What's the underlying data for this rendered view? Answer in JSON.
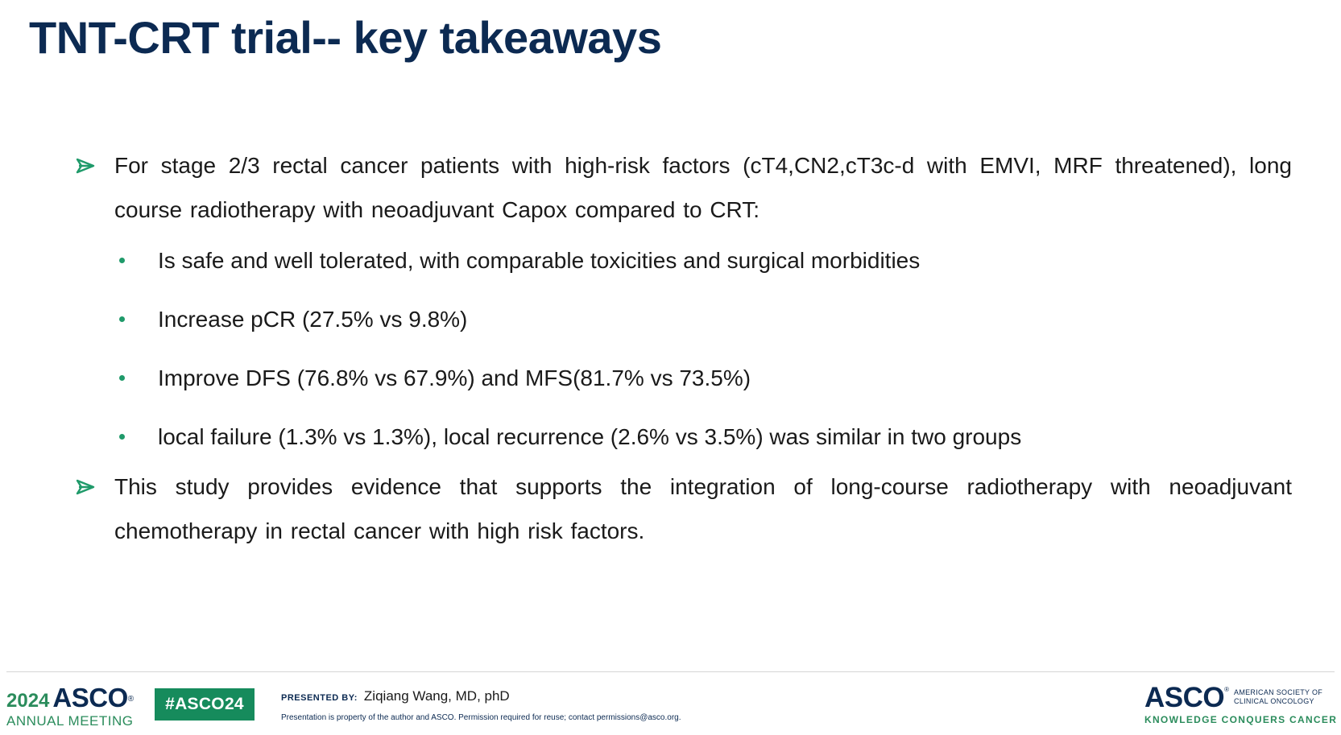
{
  "title": "TNT-CRT trial-- key takeaways",
  "bullets": [
    {
      "text": "For stage 2/3 rectal cancer patients with high-risk factors (cT4,CN2,cT3c-d with EMVI, MRF threatened), long course radiotherapy with neoadjuvant Capox compared to CRT:",
      "subbullets": [
        "Is safe and well tolerated, with comparable toxicities and surgical morbidities",
        "Increase pCR (27.5% vs 9.8%)",
        "Improve DFS (76.8% vs 67.9%) and MFS(81.7% vs 73.5%)",
        "local failure (1.3% vs 1.3%), local recurrence (2.6% vs 3.5%) was similar in two groups"
      ]
    },
    {
      "text": "This study provides evidence that supports the integration of long-course radiotherapy with neoadjuvant chemotherapy in rectal cancer with high risk factors."
    }
  ],
  "footer": {
    "annual_meeting": {
      "year": "2024",
      "brand": "ASCO",
      "reg": "®",
      "subtitle": "ANNUAL MEETING"
    },
    "hashtag": "#ASCO24",
    "presented_by_label": "PRESENTED BY:",
    "presenter": "Ziqiang Wang, MD, phD",
    "disclaimer": "Presentation is property of the author and ASCO. Permission required for reuse; contact permissions@asco.org.",
    "logo": {
      "brand": "ASCO",
      "reg": "®",
      "society": "American Society of Clinical Oncology",
      "tagline": "Knowledge Conquers Cancer"
    }
  },
  "colors": {
    "title": "#0c2a52",
    "accent_green": "#1f9a6a",
    "hashtag_bg": "#168b5c",
    "body_text": "#1a1a1a"
  },
  "icons": {
    "level1_bullet": "arrow-bullet-icon",
    "level2_bullet": "dot-bullet-icon"
  }
}
